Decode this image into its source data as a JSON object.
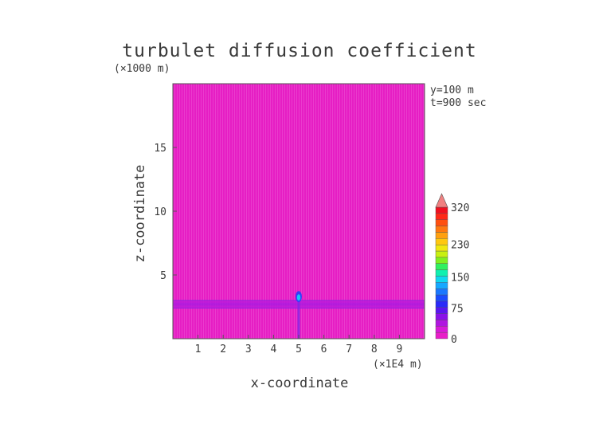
{
  "chart_data": {
    "type": "heatmap",
    "title": "turbulet diffusion coefficient",
    "xlabel": "x-coordinate",
    "ylabel": "z-coordinate",
    "x_unit": "(×1E4 m)",
    "y_unit": "(×1000 m)",
    "info": [
      "y=100  m",
      "t=900 sec"
    ],
    "xlim": [
      0,
      10
    ],
    "ylim": [
      0,
      20
    ],
    "x_ticks": [
      "1",
      "2",
      "3",
      "4",
      "5",
      "6",
      "7",
      "8",
      "9"
    ],
    "y_ticks": [
      "5",
      "10",
      "15"
    ],
    "background_value": 5,
    "features": [
      {
        "kind": "horizontal-band",
        "z_range": [
          2.4,
          3.0
        ],
        "value": 15
      },
      {
        "kind": "vertical-plume",
        "x": 5.0,
        "z_range": [
          0,
          3.6
        ],
        "value": 40
      },
      {
        "kind": "peak",
        "x": 5.0,
        "z": 3.3,
        "value": 110
      }
    ],
    "colorbar": {
      "labels": [
        "0",
        "75",
        "150",
        "230",
        "320"
      ],
      "levels": [
        0,
        320
      ],
      "extend": "max",
      "colors": [
        "#e81ec8",
        "#d81ad8",
        "#b016e0",
        "#8a12e8",
        "#5a16f0",
        "#2a2af8",
        "#1a4cff",
        "#1a78ff",
        "#16a8ff",
        "#10d8f0",
        "#10f0b0",
        "#30f060",
        "#80f020",
        "#c8f010",
        "#f0e810",
        "#ffc810",
        "#ffa010",
        "#ff7810",
        "#ff5010",
        "#ff2818",
        "#f01020"
      ],
      "extend_color": "#f08080"
    }
  }
}
